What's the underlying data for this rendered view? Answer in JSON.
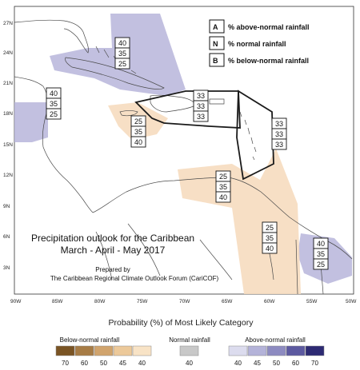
{
  "legend": {
    "items": [
      {
        "key": "A",
        "label": "% above-normal rainfall"
      },
      {
        "key": "N",
        "label": "% normal rainfall"
      },
      {
        "key": "B",
        "label": "% below-normal rainfall"
      }
    ]
  },
  "title": {
    "line1": "Precipitation outlook for the Caribbean",
    "line2": "March - April - May 2017",
    "prepared_by": "Prepared by",
    "forum": "The Caribbean Regional Climate Outlook Forum (CariCOF)"
  },
  "axes": {
    "lat_ticks": [
      "27N",
      "24N",
      "21N",
      "18N",
      "15N",
      "12N",
      "9N",
      "6N",
      "3N"
    ],
    "lon_ticks": [
      "90W",
      "85W",
      "80W",
      "75W",
      "70W",
      "65W",
      "60W",
      "55W",
      "50W"
    ]
  },
  "probability_boxes": [
    {
      "id": "bahamas",
      "values": [
        "40",
        "35",
        "25"
      ]
    },
    {
      "id": "central-america-north",
      "values": [
        "40",
        "35",
        "25"
      ]
    },
    {
      "id": "jamaica",
      "values": [
        "25",
        "35",
        "40"
      ]
    },
    {
      "id": "greater-antilles",
      "values": [
        "33",
        "33",
        "33"
      ]
    },
    {
      "id": "lesser-antilles",
      "values": [
        "33",
        "33",
        "33"
      ]
    },
    {
      "id": "southern-caribbean",
      "values": [
        "25",
        "35",
        "40"
      ]
    },
    {
      "id": "guianas-west",
      "values": [
        "25",
        "35",
        "40"
      ]
    },
    {
      "id": "guianas-east",
      "values": [
        "40",
        "35",
        "25"
      ]
    }
  ],
  "colorbar": {
    "title": "Probability (%) of Most Likely Category",
    "below": {
      "label": "Below-normal rainfall",
      "steps": [
        "70",
        "60",
        "50",
        "45",
        "40"
      ],
      "colors": [
        "#7a5424",
        "#a77c45",
        "#d1a46d",
        "#ecc99a",
        "#f8e3c6"
      ]
    },
    "normal": {
      "label": "Normal rainfall",
      "steps": [
        "40"
      ],
      "colors": [
        "#c8c8c8"
      ]
    },
    "above": {
      "label": "Above-normal rainfall",
      "steps": [
        "40",
        "45",
        "50",
        "60",
        "70"
      ],
      "colors": [
        "#dcdcee",
        "#b4b3d9",
        "#8d8bc1",
        "#5c59a0",
        "#2d2a73"
      ]
    }
  },
  "colors": {
    "above_fill": "#b7b5db",
    "below_fill": "#f6dcbf",
    "land_outline": "#4a4a4a",
    "region_outline": "#1a1a1a"
  }
}
